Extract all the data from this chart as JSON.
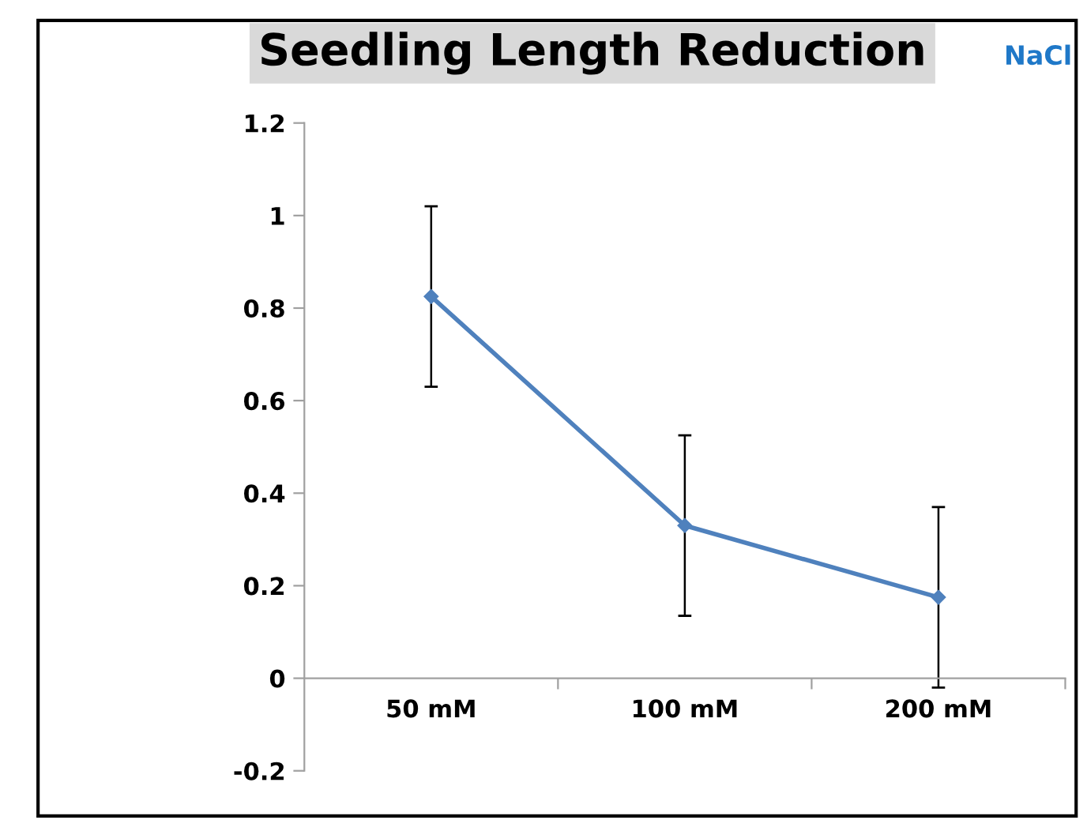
{
  "chart_data": {
    "type": "line",
    "title": "Seedling Length Reduction",
    "annotations": [
      "NaCl"
    ],
    "categories": [
      "50 mM",
      "100 mM",
      "200 mM"
    ],
    "series": [
      {
        "color": "#4f81bd",
        "values": [
          0.825,
          0.33,
          0.175
        ],
        "errors": [
          0.195,
          0.195,
          0.195
        ]
      }
    ],
    "ylim": [
      -0.2,
      1.2
    ],
    "yticks": [
      -0.2,
      0,
      0.2,
      0.4,
      0.6,
      0.8,
      1,
      1.2
    ],
    "marker": "diamond",
    "line_style": "solid"
  }
}
